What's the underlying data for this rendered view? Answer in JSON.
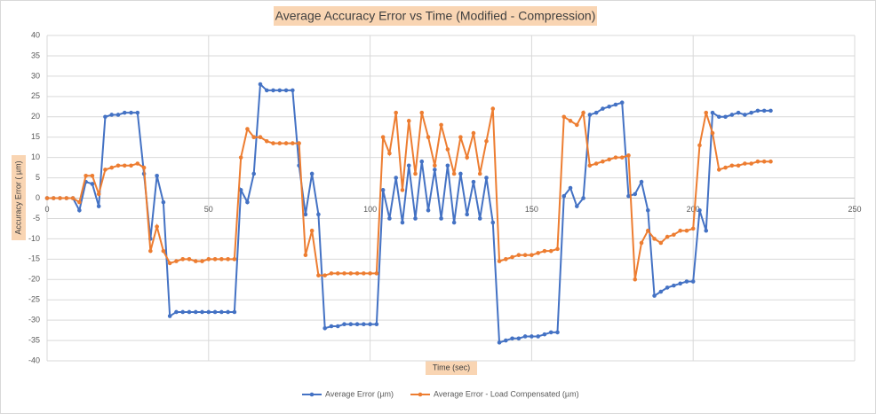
{
  "chart_data": {
    "type": "line",
    "title": "Average Accuracy Error vs Time (Modified - Compression)",
    "x_label": "Time (sec)",
    "y_label": "Accuracy Error ( µm)",
    "xlim": [
      0,
      250
    ],
    "xticks": [
      0,
      50,
      100,
      150,
      200,
      250
    ],
    "ylim": [
      -40,
      40
    ],
    "yticks": [
      -40,
      -35,
      -30,
      -25,
      -20,
      -15,
      -10,
      -5,
      0,
      5,
      10,
      15,
      20,
      25,
      30,
      35,
      40
    ],
    "grid": true,
    "legend": "bottom",
    "x": [
      0,
      2,
      4,
      6,
      8,
      10,
      12,
      14,
      16,
      18,
      20,
      22,
      24,
      26,
      28,
      30,
      32,
      34,
      36,
      38,
      40,
      42,
      44,
      46,
      48,
      50,
      52,
      54,
      56,
      58,
      60,
      62,
      64,
      66,
      68,
      70,
      72,
      74,
      76,
      78,
      80,
      82,
      84,
      86,
      88,
      90,
      92,
      94,
      96,
      98,
      100,
      102,
      104,
      106,
      108,
      110,
      112,
      114,
      116,
      118,
      120,
      122,
      124,
      126,
      128,
      130,
      132,
      134,
      136,
      138,
      140,
      142,
      144,
      146,
      148,
      150,
      152,
      154,
      156,
      158,
      160,
      162,
      164,
      166,
      168,
      170,
      172,
      174,
      176,
      178,
      180,
      182,
      184,
      186,
      188,
      190,
      192,
      194,
      196,
      198,
      200,
      202,
      204,
      206,
      208,
      210,
      212,
      214,
      216,
      218,
      220,
      222,
      224
    ],
    "series": [
      {
        "name": "Average Error (µm)",
        "color": "#4472c4",
        "values": [
          0,
          0,
          0,
          0,
          0,
          -3,
          4,
          3.5,
          -2,
          20,
          20.5,
          20.5,
          21,
          21,
          21,
          6,
          -10,
          5.5,
          -1,
          -29,
          -28,
          -28,
          -28,
          -28,
          -28,
          -28,
          -28,
          -28,
          -28,
          -28,
          2,
          -1,
          6,
          28,
          26.5,
          26.5,
          26.5,
          26.5,
          26.5,
          8,
          -4,
          6,
          -4,
          -32,
          -31.5,
          -31.5,
          -31,
          -31,
          -31,
          -31,
          -31,
          -31,
          2,
          -5,
          5,
          -6,
          8,
          -5,
          9,
          -3,
          7,
          -5,
          8,
          -6,
          6,
          -4,
          4,
          -5,
          5,
          -6,
          -35.5,
          -35,
          -34.5,
          -34.5,
          -34,
          -34,
          -34,
          -33.5,
          -33,
          -33,
          0.5,
          2.5,
          -2,
          0,
          20.5,
          21,
          22,
          22.5,
          23,
          23.5,
          0.5,
          1,
          4,
          -3,
          -24,
          -23,
          -22,
          -21.5,
          -21,
          -20.5,
          -20.5,
          -3,
          -8,
          21,
          20,
          20,
          20.5,
          21,
          20.5,
          21,
          21.5,
          21.5,
          21.5
        ]
      },
      {
        "name": "Average Error - Load Compensated (µm)",
        "color": "#ed7d31",
        "values": [
          0,
          0,
          0,
          0,
          0,
          -1,
          5.5,
          5.5,
          1,
          7,
          7.5,
          8,
          8,
          8,
          8.5,
          7.5,
          -13,
          -7,
          -13,
          -16,
          -15.5,
          -15,
          -15,
          -15.5,
          -15.5,
          -15,
          -15,
          -15,
          -15,
          -15,
          10,
          17,
          15,
          15,
          14,
          13.5,
          13.5,
          13.5,
          13.5,
          13.5,
          -14,
          -8,
          -19,
          -19,
          -18.5,
          -18.5,
          -18.5,
          -18.5,
          -18.5,
          -18.5,
          -18.5,
          -18.5,
          15,
          11,
          21,
          2,
          19,
          6,
          21,
          15,
          8,
          18,
          12,
          6,
          15,
          10,
          16,
          6,
          14,
          22,
          -15.5,
          -15,
          -14.5,
          -14,
          -14,
          -14,
          -13.5,
          -13,
          -13,
          -12.5,
          20,
          19,
          18,
          21,
          8,
          8.5,
          9,
          9.5,
          10,
          10,
          10.5,
          -20,
          -11,
          -8,
          -10,
          -11,
          -9.5,
          -9,
          -8,
          -8,
          -7.5,
          13,
          21,
          16,
          7,
          7.5,
          8,
          8,
          8.5,
          8.5,
          9,
          9,
          9
        ]
      }
    ]
  }
}
